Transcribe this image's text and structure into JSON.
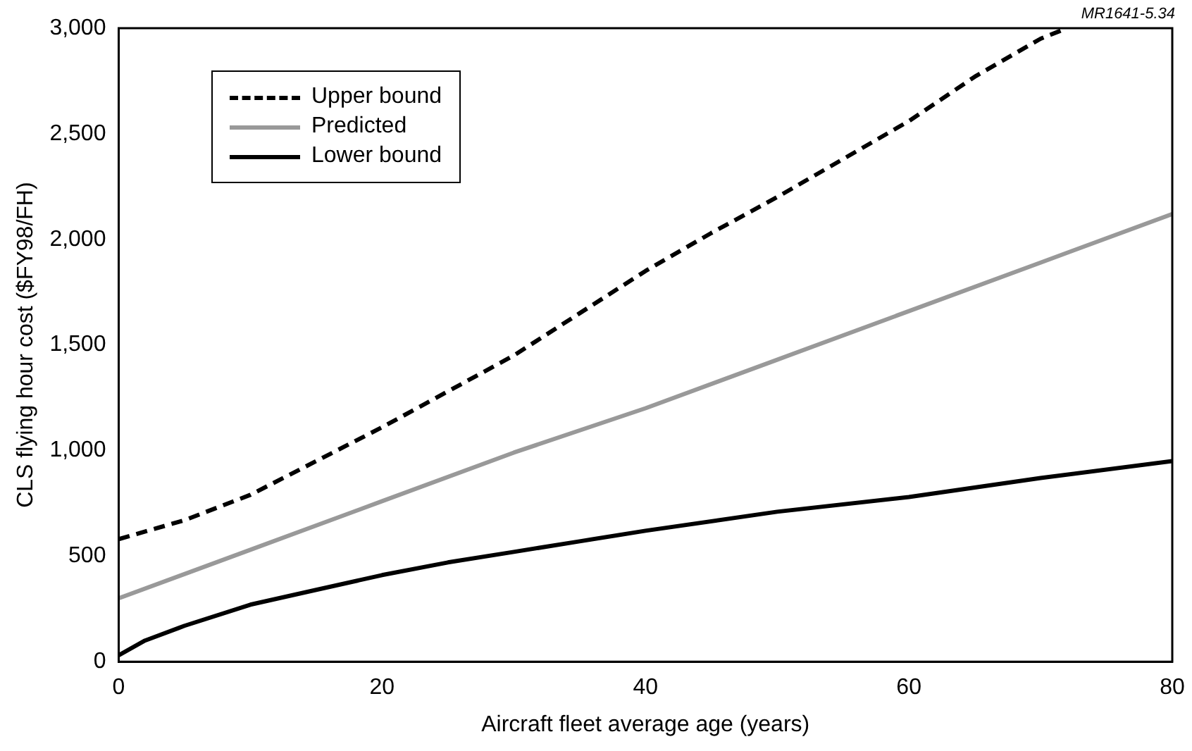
{
  "chart_data": {
    "type": "line",
    "xlabel": "Aircraft fleet average age (years)",
    "ylabel": "CLS flying hour cost ($FY98/FH)",
    "annotations": [
      "MR1641-5.34"
    ],
    "xlim": [
      0,
      80
    ],
    "xticks": [
      0,
      20,
      40,
      60,
      80
    ],
    "ylim": [
      0,
      3000
    ],
    "yticks": [
      {
        "value": 0,
        "label": "0"
      },
      {
        "value": 500,
        "label": "500"
      },
      {
        "value": 1000,
        "label": "1,000"
      },
      {
        "value": 1500,
        "label": "1,500"
      },
      {
        "value": 2000,
        "label": "2,000"
      },
      {
        "value": 2500,
        "label": "2,500"
      },
      {
        "value": 3000,
        "label": "3,000"
      }
    ],
    "grid": false,
    "legend": "top left",
    "marker": "none",
    "series": [
      {
        "name": "Upper bound",
        "color": "#000000",
        "line_style": "dashed",
        "x": [
          0,
          5,
          10,
          15,
          20,
          25,
          30,
          35,
          40,
          45,
          50,
          55,
          60,
          65,
          70,
          72
        ],
        "values": [
          580,
          670,
          790,
          950,
          1110,
          1280,
          1450,
          1650,
          1850,
          2030,
          2200,
          2380,
          2560,
          2770,
          2950,
          3000
        ]
      },
      {
        "name": "Predicted",
        "color": "#999999",
        "line_style": "solid",
        "x": [
          0,
          10,
          20,
          30,
          40,
          50,
          60,
          70,
          80
        ],
        "values": [
          300,
          530,
          760,
          990,
          1200,
          1430,
          1660,
          1890,
          2120
        ]
      },
      {
        "name": "Lower bound",
        "color": "#000000",
        "line_style": "solid",
        "x": [
          0,
          2,
          5,
          10,
          15,
          20,
          25,
          30,
          35,
          40,
          50,
          60,
          70,
          80
        ],
        "values": [
          30,
          100,
          170,
          270,
          340,
          410,
          470,
          520,
          570,
          620,
          710,
          780,
          870,
          950
        ]
      }
    ]
  }
}
